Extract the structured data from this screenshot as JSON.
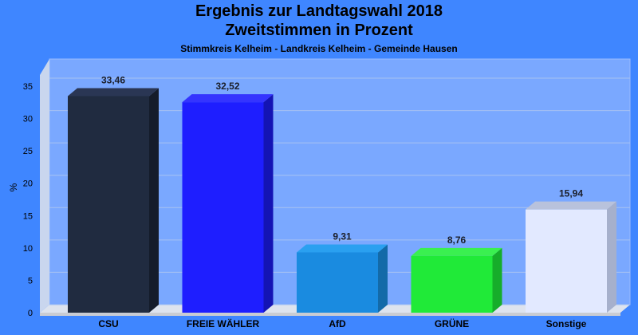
{
  "header": {
    "title_line1": "Ergebnis zur Landtagswahl 2018",
    "title_line2": "Zweitstimmen in Prozent",
    "subtitle": "Stimmkreis Kelheim - Landkreis Kelheim - Gemeinde Hausen"
  },
  "chart_data": {
    "type": "bar",
    "title": "Ergebnis zur Landtagswahl 2018 Zweitstimmen in Prozent",
    "subtitle": "Stimmkreis Kelheim - Landkreis Kelheim - Gemeinde Hausen",
    "xlabel": "",
    "ylabel": "%",
    "ylim": [
      0,
      35
    ],
    "yticks": [
      0,
      5,
      10,
      15,
      20,
      25,
      30,
      35
    ],
    "grid": true,
    "categories": [
      "CSU",
      "FREIE WÄHLER",
      "AfD",
      "GRÜNE",
      "Sonstige"
    ],
    "values": [
      33.46,
      32.52,
      9.31,
      8.76,
      15.94
    ],
    "value_labels": [
      "33,46",
      "32,52",
      "9,31",
      "8,76",
      "15,94"
    ],
    "colors": [
      "#202b40",
      "#1e1eff",
      "#1a8be0",
      "#20ea38",
      "#e2e9ff"
    ],
    "side_colors": [
      "#151c2b",
      "#1414b4",
      "#136aa8",
      "#16ad2a",
      "#a6b0cc"
    ],
    "top_colors": [
      "#2a3654",
      "#3434ff",
      "#2aa0f0",
      "#3af050",
      "#b8c2dc"
    ]
  }
}
